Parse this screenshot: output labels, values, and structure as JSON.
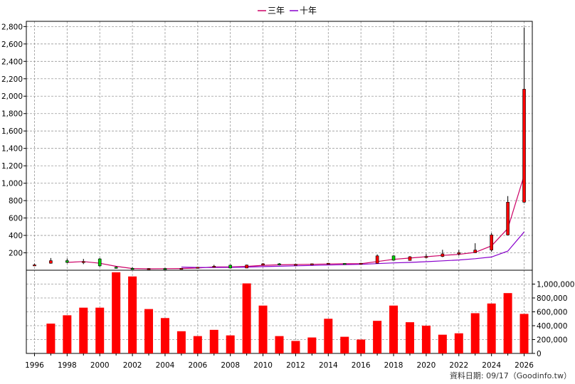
{
  "chart_data": {
    "type": "candlestick+bar",
    "legend": [
      {
        "label": "三年",
        "color": "#cc0066"
      },
      {
        "label": "十年",
        "color": "#8800cc"
      }
    ],
    "price_axis": {
      "ylim": [
        0,
        2860
      ],
      "ticks": [
        "200",
        "400",
        "600",
        "800",
        "1,000",
        "1,200",
        "1,400",
        "1,600",
        "1,800",
        "2,000",
        "2,200",
        "2,400",
        "2,600",
        "2,800"
      ],
      "tick_values": [
        200,
        400,
        600,
        800,
        1000,
        1200,
        1400,
        1600,
        1800,
        2000,
        2200,
        2400,
        2600,
        2800
      ],
      "grid": true
    },
    "volume_axis": {
      "ylim": [
        0,
        1200000
      ],
      "ticks": [
        "0",
        "200,000",
        "400,000",
        "600,000",
        "800,000",
        "1,000,000"
      ],
      "tick_values": [
        0,
        200000,
        400000,
        600000,
        800000,
        1000000
      ],
      "grid": true
    },
    "x_axis": {
      "xlim": [
        1995.5,
        2026.5
      ],
      "ticks": [
        "1996",
        "1998",
        "2000",
        "2002",
        "2004",
        "2006",
        "2008",
        "2010",
        "2012",
        "2014",
        "2016",
        "2018",
        "2020",
        "2022",
        "2024",
        "2026"
      ],
      "tick_values": [
        1996,
        1998,
        2000,
        2002,
        2004,
        2006,
        2008,
        2010,
        2012,
        2014,
        2016,
        2018,
        2020,
        2022,
        2024,
        2026
      ]
    },
    "candles": [
      {
        "x": 1996,
        "open": 60,
        "high": 75,
        "low": 55,
        "close": 62
      },
      {
        "x": 1997,
        "open": 80,
        "high": 140,
        "low": 75,
        "close": 110
      },
      {
        "x": 1998,
        "open": 110,
        "high": 135,
        "low": 80,
        "close": 90
      },
      {
        "x": 1999,
        "open": 95,
        "high": 130,
        "low": 70,
        "close": 100
      },
      {
        "x": 2000,
        "open": 130,
        "high": 140,
        "low": 40,
        "close": 50
      },
      {
        "x": 2001,
        "open": 35,
        "high": 45,
        "low": 18,
        "close": 22
      },
      {
        "x": 2002,
        "open": 22,
        "high": 35,
        "low": 12,
        "close": 16
      },
      {
        "x": 2003,
        "open": 16,
        "high": 24,
        "low": 12,
        "close": 20
      },
      {
        "x": 2004,
        "open": 20,
        "high": 26,
        "low": 14,
        "close": 18
      },
      {
        "x": 2005,
        "open": 18,
        "high": 24,
        "low": 15,
        "close": 22
      },
      {
        "x": 2006,
        "open": 22,
        "high": 38,
        "low": 20,
        "close": 34
      },
      {
        "x": 2007,
        "open": 34,
        "high": 62,
        "low": 30,
        "close": 46
      },
      {
        "x": 2008,
        "open": 58,
        "high": 64,
        "low": 22,
        "close": 25
      },
      {
        "x": 2009,
        "open": 25,
        "high": 64,
        "low": 24,
        "close": 60
      },
      {
        "x": 2010,
        "open": 60,
        "high": 82,
        "low": 55,
        "close": 74
      },
      {
        "x": 2011,
        "open": 74,
        "high": 82,
        "low": 56,
        "close": 62
      },
      {
        "x": 2012,
        "open": 62,
        "high": 72,
        "low": 58,
        "close": 68
      },
      {
        "x": 2013,
        "open": 68,
        "high": 78,
        "low": 62,
        "close": 74
      },
      {
        "x": 2014,
        "open": 74,
        "high": 84,
        "low": 68,
        "close": 80
      },
      {
        "x": 2015,
        "open": 78,
        "high": 82,
        "low": 64,
        "close": 70
      },
      {
        "x": 2016,
        "open": 70,
        "high": 84,
        "low": 66,
        "close": 80
      },
      {
        "x": 2017,
        "open": 80,
        "high": 182,
        "low": 76,
        "close": 165
      },
      {
        "x": 2018,
        "open": 165,
        "high": 172,
        "low": 110,
        "close": 115
      },
      {
        "x": 2019,
        "open": 112,
        "high": 162,
        "low": 110,
        "close": 155
      },
      {
        "x": 2020,
        "open": 155,
        "high": 185,
        "low": 135,
        "close": 158
      },
      {
        "x": 2021,
        "open": 158,
        "high": 235,
        "low": 150,
        "close": 188
      },
      {
        "x": 2022,
        "open": 188,
        "high": 232,
        "low": 168,
        "close": 202
      },
      {
        "x": 2023,
        "open": 202,
        "high": 310,
        "low": 198,
        "close": 232
      },
      {
        "x": 2024,
        "open": 232,
        "high": 428,
        "low": 212,
        "close": 405
      },
      {
        "x": 2025,
        "open": 405,
        "high": 852,
        "low": 402,
        "close": 782
      },
      {
        "x": 2026,
        "open": 782,
        "high": 2790,
        "low": 775,
        "close": 2080
      }
    ],
    "series": [
      {
        "name": "三年",
        "x": [
          1998,
          1999,
          2000,
          2001,
          2002,
          2003,
          2004,
          2005,
          2006,
          2007,
          2008,
          2009,
          2010,
          2011,
          2012,
          2013,
          2014,
          2015,
          2016,
          2017,
          2018,
          2019,
          2020,
          2021,
          2022,
          2023,
          2024,
          2025,
          2026
        ],
        "values": [
          90,
          100,
          80,
          45,
          20,
          16,
          18,
          20,
          25,
          38,
          38,
          44,
          56,
          62,
          65,
          68,
          72,
          74,
          74,
          100,
          125,
          140,
          155,
          170,
          182,
          205,
          280,
          480,
          1090
        ]
      },
      {
        "name": "十年",
        "x": [
          2005,
          2006,
          2007,
          2008,
          2009,
          2010,
          2011,
          2012,
          2013,
          2014,
          2015,
          2016,
          2017,
          2018,
          2019,
          2020,
          2021,
          2022,
          2023,
          2024,
          2025,
          2026
        ],
        "values": [
          36,
          32,
          32,
          33,
          36,
          42,
          46,
          51,
          55,
          60,
          64,
          68,
          76,
          84,
          90,
          98,
          108,
          118,
          132,
          152,
          220,
          440
        ]
      }
    ],
    "volume": {
      "x": [
        1996,
        1997,
        1998,
        1999,
        2000,
        2001,
        2002,
        2003,
        2004,
        2005,
        2006,
        2007,
        2008,
        2009,
        2010,
        2011,
        2012,
        2013,
        2014,
        2015,
        2016,
        2017,
        2018,
        2019,
        2020,
        2021,
        2022,
        2023,
        2024,
        2025,
        2026
      ],
      "values": [
        0,
        430000,
        550000,
        660000,
        660000,
        1170000,
        1110000,
        640000,
        510000,
        320000,
        250000,
        340000,
        260000,
        1010000,
        690000,
        250000,
        180000,
        230000,
        500000,
        240000,
        200000,
        470000,
        690000,
        450000,
        400000,
        270000,
        290000,
        580000,
        720000,
        870000,
        570000
      ]
    }
  },
  "footer": "資料日期: 09/17（Goodinfo.tw）"
}
